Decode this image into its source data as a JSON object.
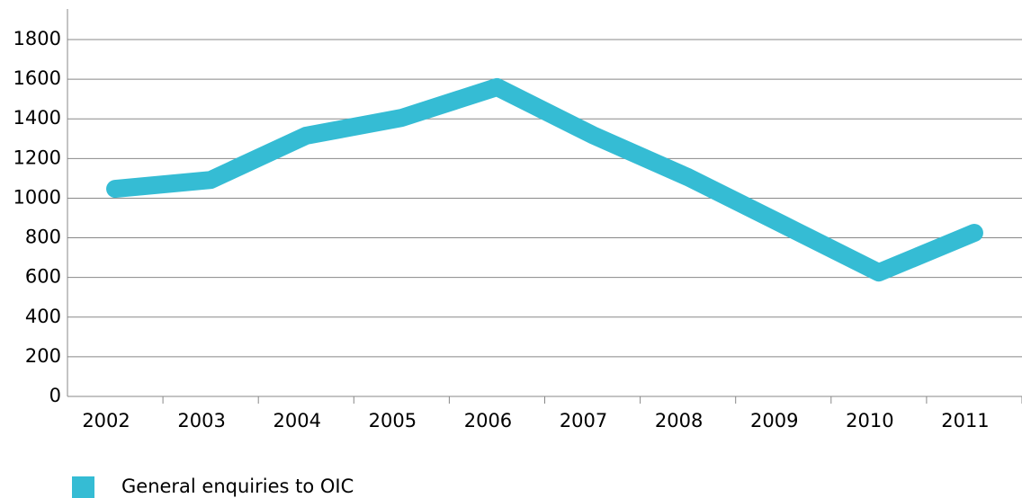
{
  "chart_data": {
    "type": "line",
    "categories": [
      "2002",
      "2003",
      "2004",
      "2005",
      "2006",
      "2007",
      "2008",
      "2009",
      "2010",
      "2011"
    ],
    "series": [
      {
        "name": "General enquiries to OIC",
        "color": "#35bcd4",
        "values": [
          1047,
          1092,
          1315,
          1405,
          1560,
          1319,
          1106,
          866,
          625,
          825
        ]
      }
    ],
    "ylim": [
      0,
      1800
    ],
    "yticks": [
      0,
      200,
      400,
      600,
      800,
      1000,
      1200,
      1400,
      1600,
      1800
    ],
    "grid": true,
    "legend": "bottom-left"
  }
}
